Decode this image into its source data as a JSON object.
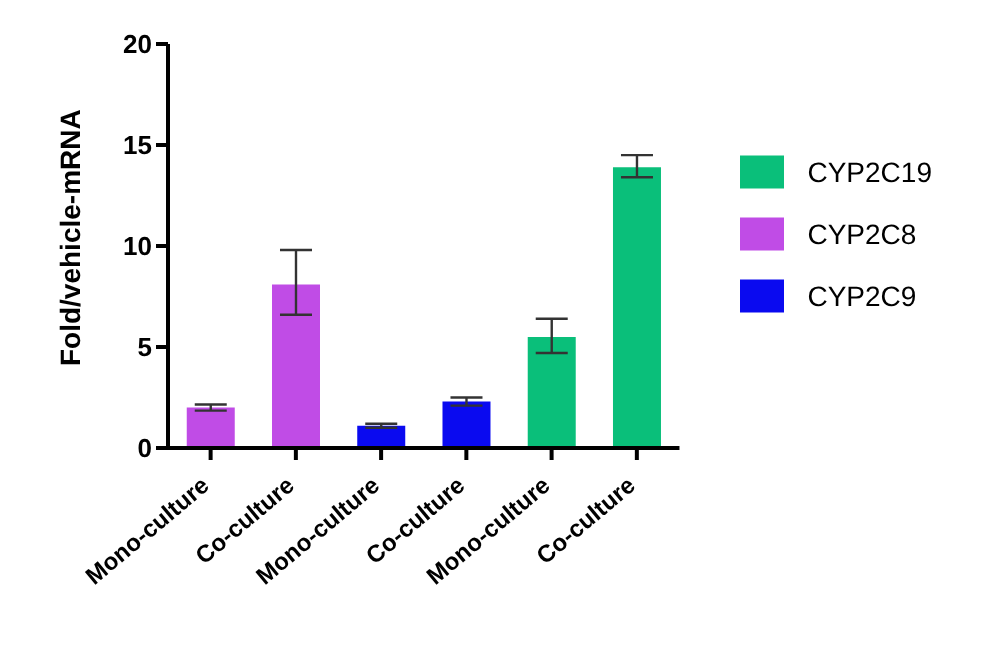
{
  "chart_data": {
    "type": "bar",
    "ylabel": "Fold/vehicle-mRNA",
    "categories": [
      "Mono-culture",
      "Co-culture",
      "Mono-culture",
      "Co-culture",
      "Mono-culture",
      "Co-culture"
    ],
    "series": [
      {
        "name": "CYP2C8",
        "color": "#c04ce6",
        "values": [
          2.0,
          8.1,
          null,
          null,
          null,
          null
        ],
        "errors": [
          0.15,
          [
            6.6,
            9.8
          ],
          null,
          null,
          null,
          null
        ]
      },
      {
        "name": "CYP2C9",
        "color": "#0a0af0",
        "values": [
          null,
          null,
          1.1,
          2.3,
          null,
          null
        ],
        "errors": [
          null,
          null,
          0.1,
          0.2,
          null,
          null
        ]
      },
      {
        "name": "CYP2C19",
        "color": "#0abf7a",
        "values": [
          null,
          null,
          null,
          null,
          5.5,
          13.9
        ],
        "errors": [
          null,
          null,
          null,
          null,
          [
            4.7,
            6.4
          ],
          [
            13.4,
            14.5
          ]
        ]
      }
    ],
    "ylim": [
      0,
      20
    ],
    "yticks": [
      0,
      5,
      10,
      15,
      20
    ],
    "grid": false,
    "legend": "right"
  }
}
